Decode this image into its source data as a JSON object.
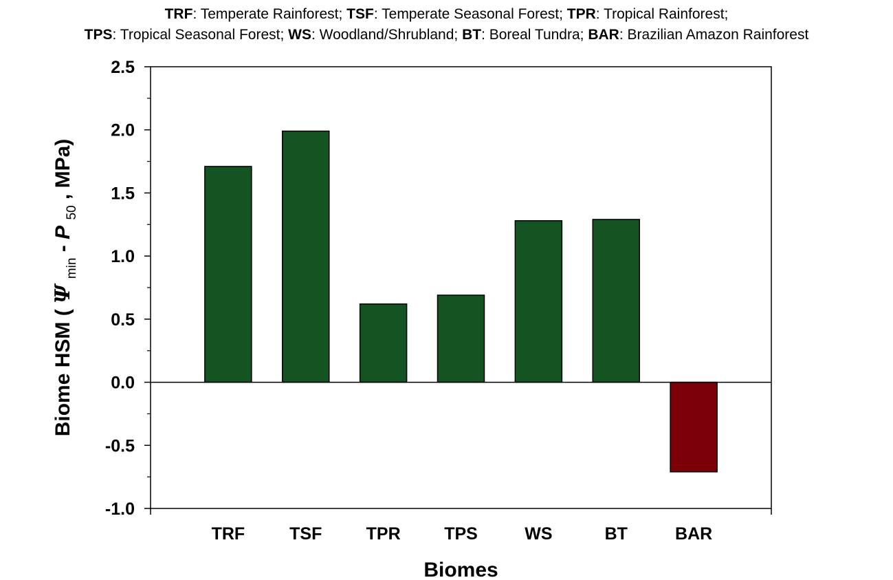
{
  "legend_note": {
    "line1": [
      {
        "abbr": "TRF",
        "text": ": Temperate Rainforest; "
      },
      {
        "abbr": "TSF",
        "text": ": Temperate Seasonal Forest; "
      },
      {
        "abbr": "TPR",
        "text": ": Tropical Rainforest;"
      }
    ],
    "line2": [
      {
        "abbr": "TPS",
        "text": ": Tropical Seasonal Forest; "
      },
      {
        "abbr": "WS",
        "text": ": Woodland/Shrubland; "
      },
      {
        "abbr": "BT",
        "text": ": Boreal Tundra; "
      },
      {
        "abbr": "BAR",
        "text": ": Brazilian Amazon Rainforest"
      }
    ]
  },
  "chart_data": {
    "type": "bar",
    "categories": [
      "TRF",
      "TSF",
      "TPR",
      "TPS",
      "WS",
      "BT",
      "BAR"
    ],
    "values": [
      1.71,
      1.99,
      0.62,
      0.69,
      1.28,
      1.29,
      -0.71
    ],
    "colors": [
      "#135422",
      "#135422",
      "#135422",
      "#135422",
      "#135422",
      "#135422",
      "#7a0009"
    ],
    "xlabel": "Biomes",
    "ylabel": {
      "prefix": "Biome HSM (",
      "psi": "Ψ",
      "psi_sub": "min",
      "dash": " - ",
      "p": "P",
      "p_sub": "50",
      "suffix": ", MPa)"
    },
    "ylim": [
      -1.0,
      2.5
    ],
    "yticks": [
      "-1.0",
      "-0.5",
      "0.0",
      "0.5",
      "1.0",
      "1.5",
      "2.0",
      "2.5"
    ],
    "ytick_values": [
      -1.0,
      -0.5,
      0.0,
      0.5,
      1.0,
      1.5,
      2.0,
      2.5
    ],
    "grid": false,
    "zero_line": true
  }
}
